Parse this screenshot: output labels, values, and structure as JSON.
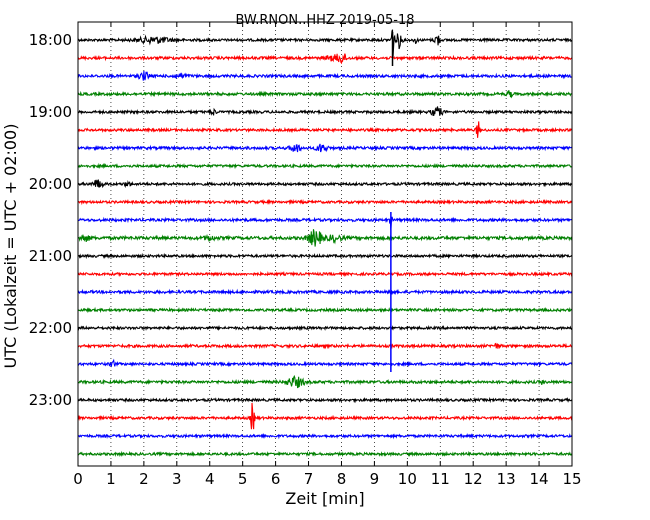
{
  "chart_data": {
    "type": "line",
    "title": "BW.RNON..HHZ 2019-05-18",
    "xlabel": "Zeit  [min]",
    "ylabel": "UTC (Lokalzeit = UTC + 02:00)",
    "xlim": [
      0,
      15
    ],
    "x_ticks": [
      "0",
      "1",
      "2",
      "3",
      "4",
      "5",
      "6",
      "7",
      "8",
      "9",
      "10",
      "11",
      "12",
      "13",
      "14",
      "15"
    ],
    "y_tick_labels": [
      "18:00",
      "19:00",
      "20:00",
      "21:00",
      "22:00",
      "23:00"
    ],
    "grid": "vertical dotted",
    "colors": [
      "#000000",
      "#ff0000",
      "#0000ff",
      "#008000"
    ],
    "traces": [
      {
        "time": "18:00",
        "color": "#000000",
        "noise": 1.2,
        "events": [
          {
            "x": 2.3,
            "amp": 3,
            "width": 0.5
          },
          {
            "x": 9.55,
            "amp": 20,
            "width": 0.05
          },
          {
            "x": 9.75,
            "amp": 8,
            "width": 0.08
          },
          {
            "x": 10.25,
            "amp": 3,
            "width": 0.05
          },
          {
            "x": 10.9,
            "amp": 9,
            "width": 0.06
          }
        ]
      },
      {
        "time": "18:15",
        "color": "#ff0000",
        "noise": 1.3,
        "events": [
          {
            "x": 8.0,
            "amp": 5,
            "width": 0.15
          },
          {
            "x": 7.7,
            "amp": 2,
            "width": 0.2
          }
        ]
      },
      {
        "time": "18:30",
        "color": "#0000ff",
        "noise": 1.3,
        "events": [
          {
            "x": 2.0,
            "amp": 4,
            "width": 0.15
          },
          {
            "x": 3.1,
            "amp": 2,
            "width": 0.2
          }
        ]
      },
      {
        "time": "18:45",
        "color": "#008000",
        "noise": 1.3,
        "events": [
          {
            "x": 13.1,
            "amp": 3,
            "width": 0.08
          }
        ]
      },
      {
        "time": "19:00",
        "color": "#000000",
        "noise": 1.2,
        "events": [
          {
            "x": 4.1,
            "amp": 3,
            "width": 0.08
          },
          {
            "x": 10.9,
            "amp": 5,
            "width": 0.15
          }
        ]
      },
      {
        "time": "19:15",
        "color": "#ff0000",
        "noise": 1.2,
        "events": [
          {
            "x": 12.15,
            "amp": 9,
            "width": 0.05
          }
        ]
      },
      {
        "time": "19:30",
        "color": "#0000ff",
        "noise": 1.3,
        "events": [
          {
            "x": 6.6,
            "amp": 4,
            "width": 0.15
          },
          {
            "x": 7.4,
            "amp": 4,
            "width": 0.15
          }
        ]
      },
      {
        "time": "19:45",
        "color": "#008000",
        "noise": 1.2,
        "events": []
      },
      {
        "time": "20:00",
        "color": "#000000",
        "noise": 1.2,
        "events": [
          {
            "x": 0.6,
            "amp": 4,
            "width": 0.15
          },
          {
            "x": 1.5,
            "amp": 2,
            "width": 0.1
          }
        ]
      },
      {
        "time": "20:15",
        "color": "#ff0000",
        "noise": 1.2,
        "events": []
      },
      {
        "time": "20:30",
        "color": "#0000ff",
        "noise": 1.3,
        "events": [
          {
            "x": 9.5,
            "amp": 9,
            "width": 0.03
          }
        ]
      },
      {
        "time": "20:45",
        "color": "#008000",
        "noise": 1.5,
        "events": [
          {
            "x": 0.2,
            "amp": 3,
            "width": 0.15
          },
          {
            "x": 4.0,
            "amp": 2,
            "width": 0.15
          },
          {
            "x": 7.2,
            "amp": 8,
            "width": 0.2
          },
          {
            "x": 7.8,
            "amp": 3,
            "width": 0.2
          }
        ]
      },
      {
        "time": "21:00",
        "color": "#000000",
        "noise": 1.2,
        "events": []
      },
      {
        "time": "21:15",
        "color": "#ff0000",
        "noise": 1.2,
        "events": []
      },
      {
        "time": "21:30",
        "color": "#0000ff",
        "noise": 1.3,
        "events": [
          {
            "x": 9.5,
            "amp": 8,
            "width": 0.04
          }
        ]
      },
      {
        "time": "21:45",
        "color": "#008000",
        "noise": 1.2,
        "events": []
      },
      {
        "time": "22:00",
        "color": "#000000",
        "noise": 1.2,
        "events": []
      },
      {
        "time": "22:15",
        "color": "#ff0000",
        "noise": 1.3,
        "events": [
          {
            "x": 12.7,
            "amp": 2,
            "width": 0.1
          }
        ]
      },
      {
        "time": "22:30",
        "color": "#0000ff",
        "noise": 1.2,
        "events": [
          {
            "x": 1.05,
            "amp": 5,
            "width": 0.06
          }
        ]
      },
      {
        "time": "22:45",
        "color": "#008000",
        "noise": 1.3,
        "events": [
          {
            "x": 6.6,
            "amp": 5,
            "width": 0.25
          },
          {
            "x": 14.1,
            "amp": 2,
            "width": 0.05
          }
        ]
      },
      {
        "time": "23:00",
        "color": "#000000",
        "noise": 1.2,
        "events": []
      },
      {
        "time": "23:15",
        "color": "#ff0000",
        "noise": 1.2,
        "events": [
          {
            "x": 5.3,
            "amp": 16,
            "width": 0.05
          }
        ]
      },
      {
        "time": "23:30",
        "color": "#0000ff",
        "noise": 1.2,
        "events": []
      },
      {
        "time": "23:45",
        "color": "#008000",
        "noise": 1.2,
        "events": []
      }
    ],
    "vertical_spikes": [
      {
        "x": 9.5,
        "from": "20:30",
        "to": "22:30",
        "color": "#0000ff"
      },
      {
        "x": 9.55,
        "from": "18:00",
        "to": "18:15",
        "color": "#000000"
      }
    ]
  }
}
